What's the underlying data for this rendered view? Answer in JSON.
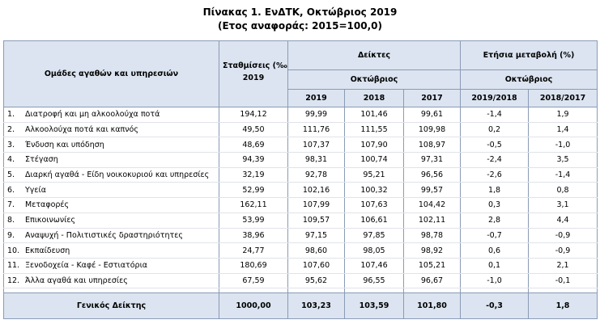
{
  "title": "Πίνακας 1. ΕνΔΤΚ, Οκτώβριος 2019",
  "subtitle": "(Ετος αναφοράς: 2015=100,0)",
  "header": {
    "groups": "Ομάδες αγαθών και υπηρεσιών",
    "weights": "Σταθμίσεις (‰)",
    "weights_year": "2019",
    "indices": "Δείκτες",
    "indices_month": "Οκτώβριος",
    "change": "Ετήσια μεταβολή (%)",
    "change_month": "Οκτώβριος",
    "years": [
      "2019",
      "2018",
      "2017",
      "2019/2018",
      "2018/2017"
    ]
  },
  "table": {
    "rows": [
      [
        "1.",
        "Διατροφή και μη αλκοολούχα ποτά",
        "194,12",
        "99,99",
        "101,46",
        "99,61",
        "-1,4",
        "1,9"
      ],
      [
        "2.",
        "Αλκοολούχα ποτά και καπνός",
        "49,50",
        "111,76",
        "111,55",
        "109,98",
        "0,2",
        "1,4"
      ],
      [
        "3.",
        "Ένδυση και υπόδηση",
        "48,69",
        "107,37",
        "107,90",
        "108,97",
        "-0,5",
        "-1,0"
      ],
      [
        "4.",
        "Στέγαση",
        "94,39",
        "98,31",
        "100,74",
        "97,31",
        "-2,4",
        "3,5"
      ],
      [
        "5.",
        "Διαρκή αγαθά - Είδη νοικοκυριού και υπηρεσίες",
        "32,19",
        "92,78",
        "95,21",
        "96,56",
        "-2,6",
        "-1,4"
      ],
      [
        "6.",
        "Υγεία",
        "52,99",
        "102,16",
        "100,32",
        "99,57",
        "1,8",
        "0,8"
      ],
      [
        "7.",
        "Μεταφορές",
        "162,11",
        "107,99",
        "107,63",
        "104,42",
        "0,3",
        "3,1"
      ],
      [
        "8.",
        "Επικοινωνίες",
        "53,99",
        "109,57",
        "106,61",
        "102,11",
        "2,8",
        "4,4"
      ],
      [
        "9.",
        "Αναψυχή - Πολιτιστικές δραστηριότητες",
        "38,96",
        "97,15",
        "97,85",
        "98,78",
        "-0,7",
        "-0,9"
      ],
      [
        "10.",
        "Εκπαίδευση",
        "24,77",
        "98,60",
        "98,05",
        "98,92",
        "0,6",
        "-0,9"
      ],
      [
        "11.",
        "Ξενοδοχεία - Καφέ - Εστιατόρια",
        "180,69",
        "107,60",
        "107,46",
        "105,21",
        "0,1",
        "2,1"
      ],
      [
        "12.",
        "Άλλα αγαθά και υπηρεσίες",
        "67,59",
        "95,62",
        "96,55",
        "96,67",
        "-1,0",
        "-0,1"
      ]
    ],
    "total": [
      "Γενικός Δείκτης",
      "1000,00",
      "103,23",
      "103,59",
      "101,80",
      "-0,3",
      "1,8"
    ]
  }
}
